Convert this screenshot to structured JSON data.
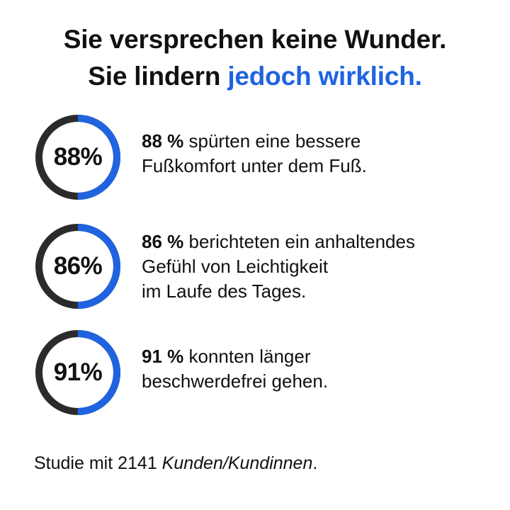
{
  "headline": {
    "line1": "Sie versprechen keine Wunder.",
    "line2_prefix": "Sie lindern ",
    "line2_accent": "jedoch wirklich."
  },
  "colors": {
    "accent": "#1f63e0",
    "ring_track": "#2b2b2e",
    "text": "#111111"
  },
  "stats": [
    {
      "value_label": "88%",
      "percent": 88,
      "lead": "88 %",
      "line1_rest": " spürten eine bessere",
      "line2": "Fußkomfort unter dem Fuß.",
      "line3": ""
    },
    {
      "value_label": "86%",
      "percent": 86,
      "lead": "86 %",
      "line1_rest": " berichteten ein anhaltendes",
      "line2": "Gefühl von Leichtigkeit",
      "line3": "im Laufe des Tages."
    },
    {
      "value_label": "91%",
      "percent": 91,
      "lead": "91 %",
      "line1_rest": " konnten länger",
      "line2": "beschwerdefrei gehen.",
      "line3": ""
    }
  ],
  "footnote": {
    "prefix": "Studie mit 2141 ",
    "emphasis": "Kunden/Kundinnen",
    "suffix": "."
  }
}
